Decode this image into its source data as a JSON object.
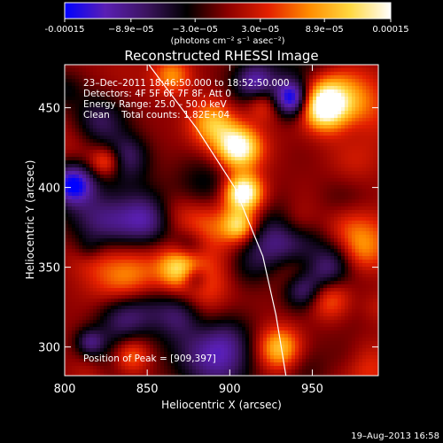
{
  "chart_data": {
    "type": "heatmap",
    "title": "Reconstructed RHESSI Image",
    "xlabel": "Heliocentric X (arcsec)",
    "ylabel": "Heliocentric Y (arcsec)",
    "xlim": [
      800,
      990
    ],
    "ylim": [
      282,
      477
    ],
    "x_ticks": [
      800,
      850,
      900,
      950
    ],
    "y_ticks": [
      300,
      350,
      400,
      450
    ],
    "x_tick_labels": [
      "800",
      "850",
      "900",
      "950"
    ],
    "y_tick_labels": [
      "300",
      "350",
      "400",
      "450"
    ],
    "colorbar": {
      "min": -0.00015,
      "max": 0.00015,
      "tick_values": [
        -0.00015,
        -8.9e-05,
        -3e-05,
        3e-05,
        8.9e-05,
        0.00015
      ],
      "tick_labels": [
        "-0.00015",
        "−8.9e−05",
        "−3.0e−05",
        "3.0e−05",
        "8.9e−05",
        "0.00015"
      ],
      "units": "(photons cm⁻² s⁻¹ asec⁻²)",
      "colormap": [
        "#0000ff",
        "#5a1fb4",
        "#3c1460",
        "#000000",
        "#8c0000",
        "#e42000",
        "#ff8c00",
        "#ffd840",
        "#ffffff"
      ]
    },
    "annotations": [
      "23–Dec–2011 18:46:50.000 to 18:52:50.000",
      "Detectors: 4F 5F 6F 7F 8F, Att 0",
      "Energy Range: 25.0 – 50.0 keV",
      "Clean    Total counts: 1.82E+04"
    ],
    "peak_label": "Position of Peak = [909,397]",
    "peak_position": [
      909,
      397
    ],
    "limb_curve": {
      "points": [
        [
          851,
          477
        ],
        [
          880,
          437
        ],
        [
          903,
          400
        ],
        [
          920,
          357
        ],
        [
          928,
          320
        ],
        [
          934,
          282
        ]
      ]
    },
    "grid": false
  },
  "footer": {
    "timestamp": "19–Aug–2013 16:58"
  }
}
